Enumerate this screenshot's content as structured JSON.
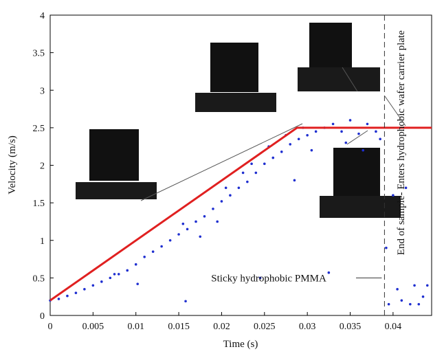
{
  "chart_data": {
    "type": "scatter",
    "xlabel": "Time (s)",
    "ylabel": "Velocity (m/s)",
    "xlim": [
      0,
      0.0445
    ],
    "ylim": [
      0,
      4
    ],
    "xticks": [
      0,
      0.005,
      0.01,
      0.015,
      0.02,
      0.025,
      0.03,
      0.035,
      0.04
    ],
    "yticks": [
      0,
      0.5,
      1,
      1.5,
      2,
      2.5,
      3,
      3.5,
      4
    ],
    "points": {
      "color": "#1f2fd0",
      "x": [
        0,
        0.001,
        0.002,
        0.003,
        0.004,
        0.005,
        0.006,
        0.007,
        0.008,
        0.009,
        0.01,
        0.0102,
        0.011,
        0.012,
        0.013,
        0.014,
        0.015,
        0.0155,
        0.016,
        0.0158,
        0.017,
        0.0175,
        0.018,
        0.019,
        0.0195,
        0.02,
        0.0205,
        0.021,
        0.022,
        0.0225,
        0.023,
        0.0235,
        0.024,
        0.025,
        0.0255,
        0.026,
        0.027,
        0.0275,
        0.028,
        0.0285,
        0.029,
        0.0295,
        0.03,
        0.0305,
        0.031,
        0.032,
        0.0325,
        0.033,
        0.034,
        0.0345,
        0.035,
        0.036,
        0.0365,
        0.037,
        0.038,
        0.0385,
        0.0392,
        0.0395,
        0.04,
        0.0405,
        0.041,
        0.0415,
        0.042,
        0.0425,
        0.043,
        0.0435,
        0.044,
        0.0245,
        0.0075
      ],
      "y": [
        0.2,
        0.22,
        0.26,
        0.3,
        0.35,
        0.4,
        0.45,
        0.5,
        0.55,
        0.6,
        0.68,
        0.42,
        0.78,
        0.85,
        0.92,
        1,
        1.08,
        1.22,
        1.15,
        0.19,
        1.25,
        1.05,
        1.32,
        1.42,
        1.25,
        1.52,
        1.7,
        1.6,
        1.7,
        1.9,
        1.78,
        2.02,
        1.9,
        2.02,
        2.25,
        2.1,
        2.18,
        2.4,
        2.28,
        1.8,
        2.35,
        2.5,
        2.4,
        2.2,
        2.45,
        2.5,
        0.57,
        2.55,
        2.45,
        2.3,
        2.6,
        2.42,
        2.2,
        2.55,
        2.45,
        2.35,
        0.9,
        0.15,
        1.6,
        0.35,
        0.2,
        1.7,
        0.15,
        0.4,
        0.15,
        0.25,
        0.4,
        0.5,
        0.55
      ]
    },
    "line": {
      "color": "#e02020",
      "x": [
        0,
        0.0288,
        0.0445
      ],
      "y": [
        0.2,
        2.5,
        2.5
      ]
    },
    "vline": {
      "x": 0.039
    },
    "annotations": [
      {
        "text": "Sticky hydrophobic PMMA",
        "x": 0.0255,
        "y": 0.5
      },
      {
        "text": "End of sample- Enters hydrophobic wafer carrier plate",
        "x": 0.0413,
        "y": 2.3
      }
    ]
  }
}
